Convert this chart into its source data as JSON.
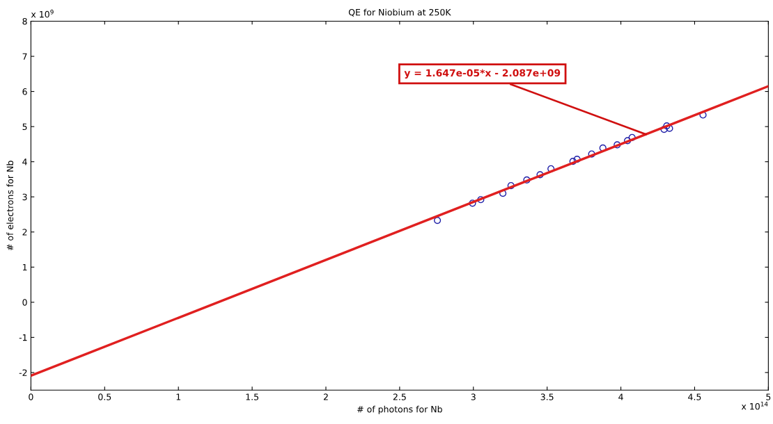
{
  "chart_data": {
    "type": "scatter",
    "title": "QE for Niobium at 250K",
    "xlabel": "# of photons for Nb",
    "ylabel": "# of electrons for Nb",
    "xlim": [
      0,
      5
    ],
    "ylim": [
      -2.5,
      8
    ],
    "xticks": [
      0,
      0.5,
      1,
      1.5,
      2,
      2.5,
      3,
      3.5,
      4,
      4.5,
      5
    ],
    "yticks": [
      -2,
      -1,
      0,
      1,
      2,
      3,
      4,
      5,
      6,
      7,
      8
    ],
    "grid": false,
    "series": [
      {
        "marker": "circle",
        "color": "#1f1fa8",
        "x": [
          2.756,
          2.994,
          3.05,
          3.2,
          3.255,
          3.362,
          3.452,
          3.526,
          3.675,
          3.703,
          3.802,
          3.878,
          3.975,
          4.045,
          4.076,
          4.293,
          4.311,
          4.33,
          4.557
        ],
        "values": [
          2.33,
          2.82,
          2.92,
          3.1,
          3.32,
          3.48,
          3.63,
          3.8,
          4.01,
          4.07,
          4.22,
          4.39,
          4.48,
          4.6,
          4.69,
          4.92,
          5.02,
          4.95,
          5.33
        ]
      },
      {
        "type": "line",
        "marker": "none",
        "color": "#e02020",
        "x": [
          0,
          5
        ],
        "values": [
          -2.09,
          6.15
        ]
      }
    ],
    "annotations": [
      {
        "text": "y = 1.647e-05*x - 2.087e+09",
        "x": 4.17,
        "y": 4.78
      },
      "x 10$^{9}$",
      "x 10$^{14}$"
    ]
  }
}
